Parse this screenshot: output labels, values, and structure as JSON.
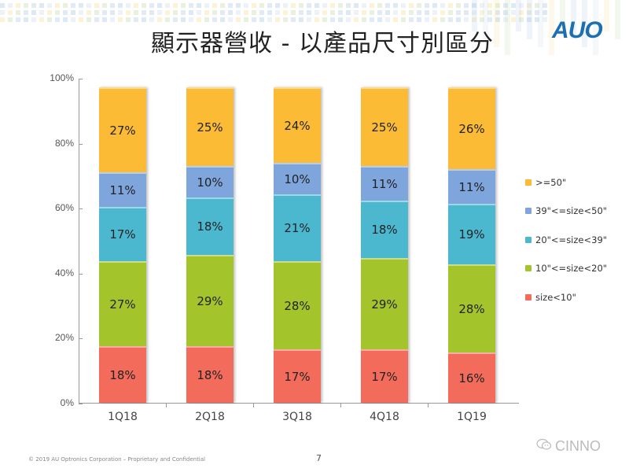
{
  "slide": {
    "title": "顯示器營收 - 以產品尺寸別區分",
    "logo": "AUO",
    "footer": "© 2019 AU Optronics Corporation – Proprietary and Confidential",
    "page_number": "7",
    "watermark": "CINNO"
  },
  "colors": {
    "size_lt_10": "#f26b5b",
    "size_10_20": "#a3c42b",
    "size_20_39": "#4bb8cf",
    "size_39_50": "#7fa5dd",
    "size_ge_50": "#fbbb35"
  },
  "yaxis": {
    "ticks": [
      "0%",
      "20%",
      "40%",
      "60%",
      "80%",
      "100%"
    ]
  },
  "legend": [
    {
      "label": ">=50\"",
      "color": "#fbbb35"
    },
    {
      "label": "39\"<=size<50\"",
      "color": "#7fa5dd"
    },
    {
      "label": "20\"<=size<39\"",
      "color": "#4bb8cf"
    },
    {
      "label": "10\"<=size<20\"",
      "color": "#a3c42b"
    },
    {
      "label": "size<10\"",
      "color": "#f26b5b"
    }
  ],
  "bars": [
    {
      "label": "1Q18",
      "segments": [
        "18%",
        "27%",
        "17%",
        "11%",
        "27%"
      ]
    },
    {
      "label": "2Q18",
      "segments": [
        "18%",
        "29%",
        "18%",
        "10%",
        "25%"
      ]
    },
    {
      "label": "3Q18",
      "segments": [
        "17%",
        "28%",
        "21%",
        "10%",
        "24%"
      ]
    },
    {
      "label": "4Q18",
      "segments": [
        "17%",
        "29%",
        "18%",
        "11%",
        "25%"
      ]
    },
    {
      "label": "1Q19",
      "segments": [
        "16%",
        "28%",
        "19%",
        "11%",
        "26%"
      ]
    }
  ],
  "chart_data": {
    "type": "bar",
    "stacked": true,
    "title": "顯示器營收 - 以產品尺寸別區分",
    "xlabel": "",
    "ylabel": "",
    "ylim": [
      0,
      100
    ],
    "yticks": [
      "0%",
      "20%",
      "40%",
      "60%",
      "80%",
      "100%"
    ],
    "categories": [
      "1Q18",
      "2Q18",
      "3Q18",
      "4Q18",
      "1Q19"
    ],
    "series": [
      {
        "name": "size<10\"",
        "color": "#f26b5b",
        "values": [
          18,
          18,
          17,
          17,
          16
        ]
      },
      {
        "name": "10\"<=size<20\"",
        "color": "#a3c42b",
        "values": [
          27,
          29,
          28,
          29,
          28
        ]
      },
      {
        "name": "20\"<=size<39\"",
        "color": "#4bb8cf",
        "values": [
          17,
          18,
          21,
          18,
          19
        ]
      },
      {
        "name": "39\"<=size<50\"",
        "color": "#7fa5dd",
        "values": [
          11,
          10,
          10,
          11,
          11
        ]
      },
      {
        "name": ">=50\"",
        "color": "#fbbb35",
        "values": [
          27,
          25,
          24,
          25,
          26
        ]
      }
    ],
    "legend_position": "right",
    "grid": false
  }
}
